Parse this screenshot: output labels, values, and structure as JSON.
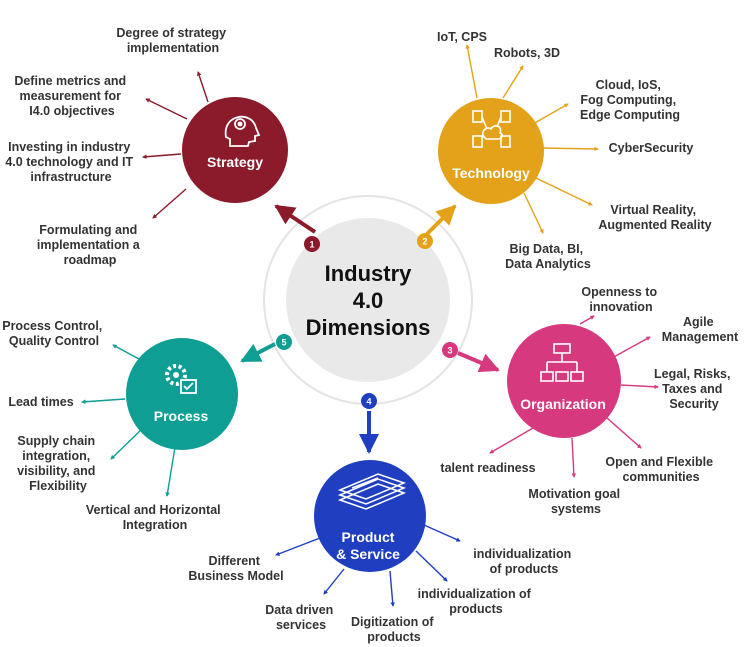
{
  "center": {
    "title_lines": [
      "Industry",
      "4.0",
      "Dimensions"
    ]
  },
  "nodes": {
    "strategy": {
      "number": "1",
      "title": "Strategy",
      "color": "#8B1A2B",
      "icon": "head-gear-icon",
      "items": [
        [
          "Degree of strategy",
          "implementation"
        ],
        [
          "Define metrics and",
          "measurement for",
          "I4.0 objectives"
        ],
        [
          "Investing in industry",
          "4.0 technology and IT",
          "infrastructure"
        ],
        [
          "Formulating and",
          "implementation a",
          "roadmap"
        ]
      ]
    },
    "technology": {
      "number": "2",
      "title": "Technology",
      "color": "#E3A21A",
      "icon": "network-cloud-icon",
      "items": [
        [
          "IoT, CPS"
        ],
        [
          "Robots, 3D"
        ],
        [
          "Cloud, IoS,",
          "Fog Computing,",
          "Edge Computing"
        ],
        [
          "CyberSecurity"
        ],
        [
          "Virtual Reality,",
          "Augmented Reality"
        ],
        [
          "Big Data, BI,",
          "Data Analytics"
        ]
      ]
    },
    "organization": {
      "number": "3",
      "title": "Organization",
      "color": "#D6397E",
      "icon": "org-chart-icon",
      "items": [
        [
          "Openness to",
          "innovation"
        ],
        [
          "Agile",
          "Management"
        ],
        [
          "Legal, Risks,",
          "Taxes and",
          "Security"
        ],
        [
          "Open and Flexible",
          "communities"
        ],
        [
          "Motivation goal",
          "systems"
        ],
        [
          "talent readiness"
        ]
      ]
    },
    "product": {
      "number": "4",
      "title_lines": [
        "Product",
        "& Service"
      ],
      "color": "#1F3FC0",
      "icon": "document-stack-icon",
      "items": [
        [
          "individualization",
          "of products"
        ],
        [
          "individualization of",
          "products"
        ],
        [
          "Digitization of",
          "products"
        ],
        [
          "Data driven",
          "services"
        ],
        [
          "Different",
          "Business Model"
        ]
      ]
    },
    "process": {
      "number": "5",
      "title": "Process",
      "color": "#0E9E93",
      "icon": "gear-check-icon",
      "items": [
        [
          "Process Control,",
          "Quality Control"
        ],
        [
          "Lead times"
        ],
        [
          "Supply chain",
          "integration,",
          "visibility, and",
          "Flexibility"
        ],
        [
          "Vertical  and Horizontal",
          "Integration"
        ]
      ]
    }
  }
}
